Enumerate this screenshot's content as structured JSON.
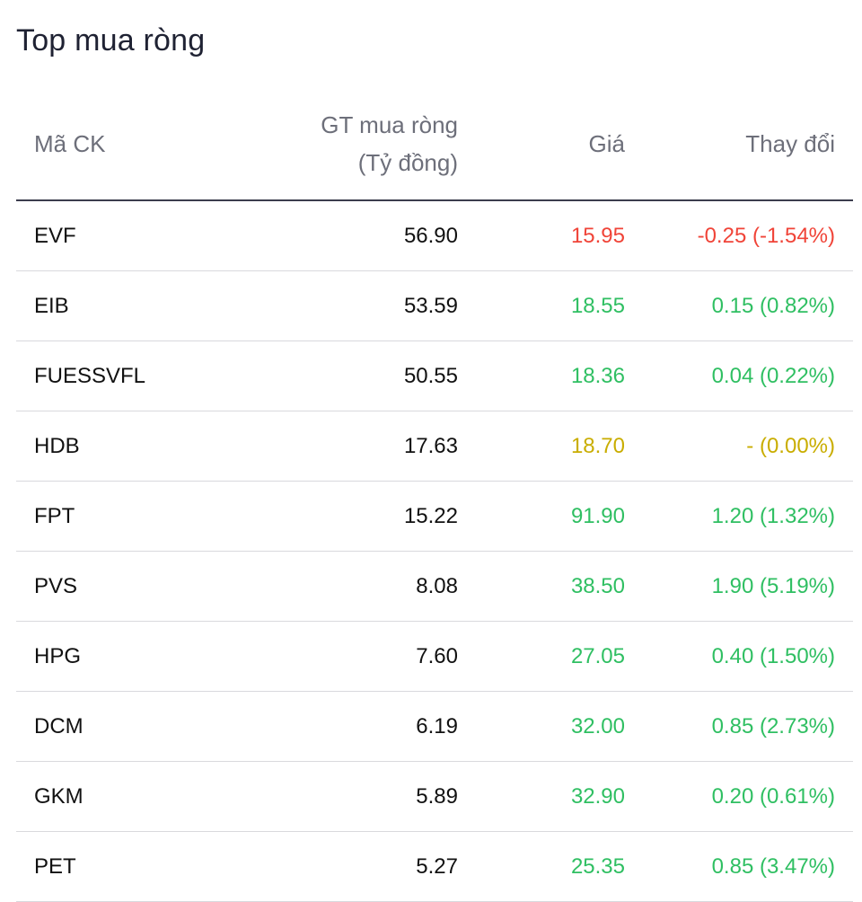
{
  "title": "Top mua ròng",
  "columns": {
    "code": "Mã CK",
    "value_line1": "GT mua ròng",
    "value_line2": "(Tỷ đồng)",
    "price": "Giá",
    "change": "Thay đổi"
  },
  "colors": {
    "down": "#f04438",
    "up": "#2fbf62",
    "flat": "#c9ad00"
  },
  "rows": [
    {
      "code": "EVF",
      "value": "56.90",
      "price": "15.95",
      "change": "-0.25 (-1.54%)",
      "trend": "down"
    },
    {
      "code": "EIB",
      "value": "53.59",
      "price": "18.55",
      "change": "0.15 (0.82%)",
      "trend": "up"
    },
    {
      "code": "FUESSVFL",
      "value": "50.55",
      "price": "18.36",
      "change": "0.04 (0.22%)",
      "trend": "up"
    },
    {
      "code": "HDB",
      "value": "17.63",
      "price": "18.70",
      "change": "- (0.00%)",
      "trend": "flat"
    },
    {
      "code": "FPT",
      "value": "15.22",
      "price": "91.90",
      "change": "1.20 (1.32%)",
      "trend": "up"
    },
    {
      "code": "PVS",
      "value": "8.08",
      "price": "38.50",
      "change": "1.90 (5.19%)",
      "trend": "up"
    },
    {
      "code": "HPG",
      "value": "7.60",
      "price": "27.05",
      "change": "0.40 (1.50%)",
      "trend": "up"
    },
    {
      "code": "DCM",
      "value": "6.19",
      "price": "32.00",
      "change": "0.85 (2.73%)",
      "trend": "up"
    },
    {
      "code": "GKM",
      "value": "5.89",
      "price": "32.90",
      "change": "0.20 (0.61%)",
      "trend": "up"
    },
    {
      "code": "PET",
      "value": "5.27",
      "price": "25.35",
      "change": "0.85 (3.47%)",
      "trend": "up"
    }
  ]
}
